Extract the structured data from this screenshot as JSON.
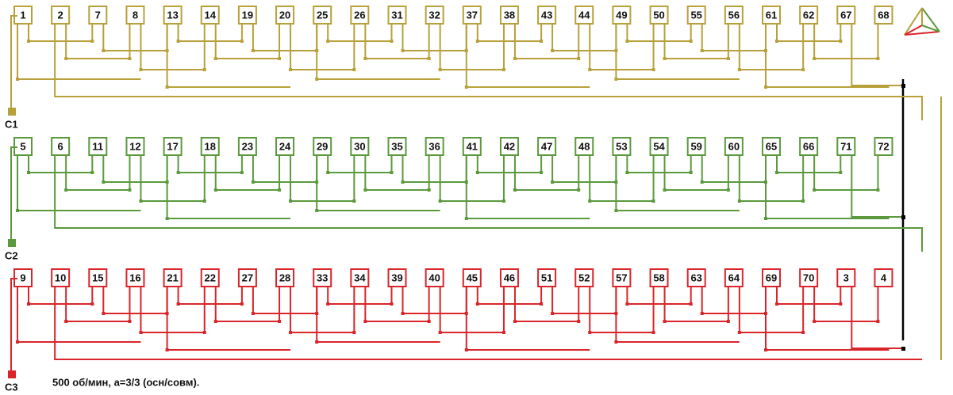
{
  "rows": [
    {
      "terminal": "C1",
      "slots": [
        "1",
        "2",
        "7",
        "8",
        "13",
        "14",
        "19",
        "20",
        "25",
        "26",
        "31",
        "32",
        "37",
        "38",
        "43",
        "44",
        "49",
        "50",
        "55",
        "56",
        "61",
        "62",
        "67",
        "68"
      ]
    },
    {
      "terminal": "C2",
      "slots": [
        "5",
        "6",
        "11",
        "12",
        "17",
        "18",
        "23",
        "24",
        "29",
        "30",
        "35",
        "36",
        "41",
        "42",
        "47",
        "48",
        "53",
        "54",
        "59",
        "60",
        "65",
        "66",
        "71",
        "72"
      ]
    },
    {
      "terminal": "C3",
      "slots": [
        "9",
        "10",
        "15",
        "16",
        "21",
        "22",
        "27",
        "28",
        "33",
        "34",
        "39",
        "40",
        "45",
        "46",
        "51",
        "52",
        "57",
        "58",
        "63",
        "64",
        "69",
        "70",
        "3",
        "4"
      ]
    }
  ],
  "caption": "500 об/мин, a=3/3 (осн/совм)."
}
